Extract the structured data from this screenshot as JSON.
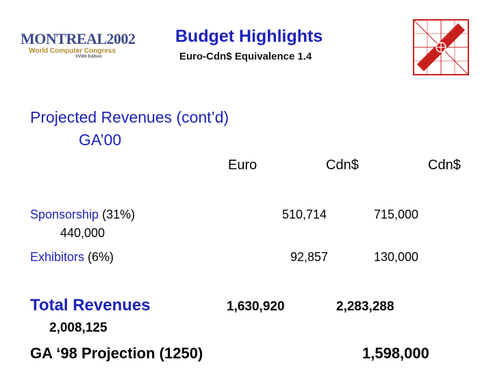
{
  "logo": {
    "name": "MONTREAL2002",
    "congress": "World Computer Congress",
    "edition": "XVIIth Edition"
  },
  "header": {
    "title": "Budget Highlights",
    "subtitle": "Euro-Cdn$ Equivalence 1.4"
  },
  "section": {
    "heading": "Projected Revenues (cont’d)",
    "subheading": "GA’00"
  },
  "columns": {
    "euro": "Euro",
    "cdn1": "Cdn$",
    "cdn2": "Cdn$"
  },
  "rows": [
    {
      "label": "Sponsorship",
      "pct": " (31%)",
      "euro": "440,000",
      "cdn1": "510,714",
      "cdn2": "715,000"
    },
    {
      "label": "Exhibitors",
      "pct": " (6%)",
      "euro": "92,857",
      "cdn1": "130,000"
    }
  ],
  "total": {
    "label": "Total Revenues",
    "euro": "1,630,920",
    "cdn1": "2,283,288",
    "cdn2": "2,008,125"
  },
  "projection": {
    "label": "GA ‘98 Projection (1250)",
    "value": "1,598,000"
  },
  "colors": {
    "title": "#1c22b8",
    "emblem_red": "#c8201f"
  }
}
